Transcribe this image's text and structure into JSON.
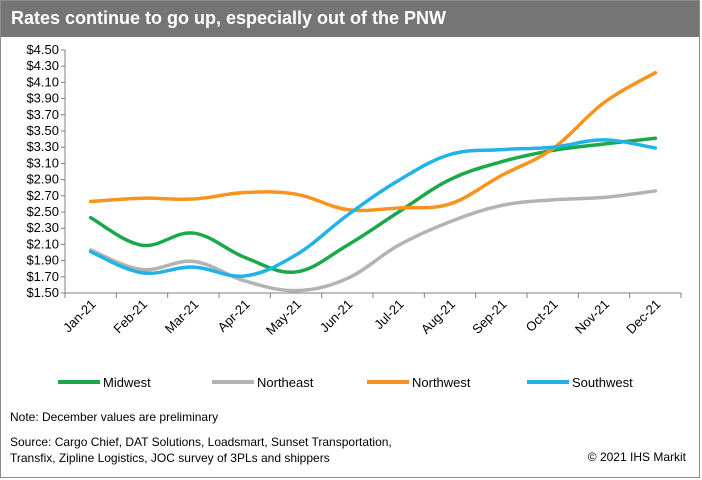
{
  "title": "Rates continue to go up, especially out of the PNW",
  "note": "Note: December values are preliminary",
  "source_line1": "Source: Cargo Chief, DAT Solutions, Loadsmart, Sunset Transportation,",
  "source_line2": "Transfix, Zipline Logistics, JOC survey of 3PLs and shippers",
  "copyright": "© 2021 IHS Markit",
  "chart_data": {
    "type": "line",
    "title": "Rates continue to go up, especially out of the PNW",
    "xlabel": "",
    "ylabel": "",
    "categories": [
      "Jan-21",
      "Feb-21",
      "Mar-21",
      "Apr-21",
      "May-21",
      "Jun-21",
      "Jul-21",
      "Aug-21",
      "Sep-21",
      "Oct-21",
      "Nov-21",
      "Dec-21"
    ],
    "y_ticks": [
      "$1.50",
      "$1.70",
      "$1.90",
      "$2.10",
      "$2.30",
      "$2.50",
      "$2.70",
      "$2.90",
      "$3.10",
      "$3.30",
      "$3.50",
      "$3.70",
      "$3.90",
      "$4.10",
      "$4.30",
      "$4.50"
    ],
    "ylim": [
      1.5,
      4.5
    ],
    "grid": false,
    "legend_position": "bottom",
    "series": [
      {
        "name": "Midwest",
        "color": "#1aa84a",
        "values": [
          2.43,
          2.09,
          2.24,
          1.94,
          1.76,
          2.09,
          2.5,
          2.9,
          3.12,
          3.26,
          3.34,
          3.41
        ]
      },
      {
        "name": "Northeast",
        "color": "#b3b3b3",
        "values": [
          2.03,
          1.79,
          1.89,
          1.65,
          1.53,
          1.68,
          2.09,
          2.38,
          2.58,
          2.65,
          2.68,
          2.76
        ]
      },
      {
        "name": "Northwest",
        "color": "#f7941d",
        "values": [
          2.63,
          2.67,
          2.66,
          2.74,
          2.72,
          2.53,
          2.55,
          2.6,
          2.95,
          3.28,
          3.85,
          4.22
        ]
      },
      {
        "name": "Southwest",
        "color": "#1fb3e8",
        "values": [
          2.01,
          1.75,
          1.82,
          1.71,
          1.97,
          2.46,
          2.89,
          3.21,
          3.27,
          3.3,
          3.39,
          3.29
        ]
      }
    ]
  }
}
